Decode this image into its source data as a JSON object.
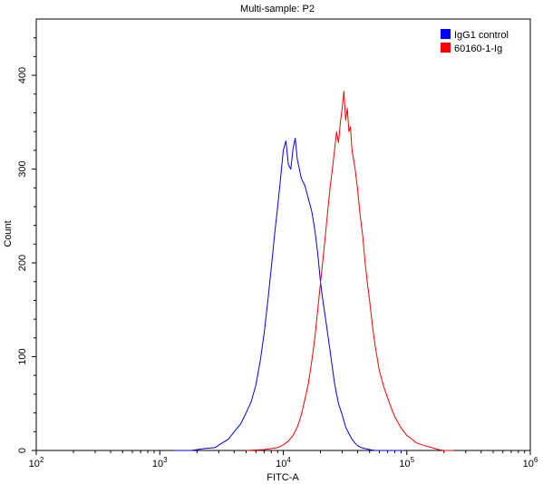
{
  "chart_data": {
    "type": "line",
    "title": "Multi-sample: P2",
    "xlabel": "FITC-A",
    "ylabel": "Count",
    "xscale": "log",
    "xlim": [
      100,
      1000000
    ],
    "ylim": [
      0,
      460
    ],
    "x_ticks": [
      100,
      1000,
      10000,
      100000,
      1000000
    ],
    "x_tick_labels": [
      {
        "base": "10",
        "exp": "2"
      },
      {
        "base": "10",
        "exp": "3"
      },
      {
        "base": "10",
        "exp": "4"
      },
      {
        "base": "10",
        "exp": "5"
      },
      {
        "base": "10",
        "exp": "6"
      }
    ],
    "y_ticks": [
      0,
      100,
      200,
      300,
      400
    ],
    "y_tick_labels": [
      "0",
      "100",
      "200",
      "300",
      "400"
    ],
    "grid": false,
    "legend_position": "top-right",
    "series": [
      {
        "name": "IgG1 control",
        "color": "#0000ff",
        "x": [
          1300,
          1800,
          2300,
          2800,
          3200,
          3600,
          4000,
          4500,
          5000,
          5500,
          6000,
          6500,
          7000,
          7500,
          8000,
          8500,
          9000,
          9500,
          10000,
          10500,
          11000,
          11500,
          12000,
          12500,
          13000,
          13500,
          14000,
          15000,
          16000,
          17000,
          18000,
          19000,
          20000,
          21000,
          22000,
          23000,
          24000,
          25000,
          26000,
          27000,
          28000,
          30000,
          32000,
          34000,
          36000,
          38000,
          40000,
          43000,
          46000,
          50000,
          55000,
          60000,
          70000,
          80000,
          95000
        ],
        "y": [
          0,
          0,
          2,
          3,
          8,
          12,
          20,
          28,
          40,
          52,
          70,
          95,
          125,
          160,
          195,
          230,
          260,
          290,
          320,
          330,
          305,
          300,
          322,
          333,
          310,
          300,
          290,
          282,
          268,
          255,
          235,
          210,
          180,
          158,
          140,
          122,
          105,
          88,
          72,
          60,
          50,
          38,
          25,
          18,
          12,
          8,
          5,
          3,
          2,
          1,
          0,
          0,
          0,
          0,
          0
        ]
      },
      {
        "name": "60160-1-Ig",
        "color": "#ff0000",
        "x": [
          5000,
          7000,
          9000,
          10000,
          11000,
          12000,
          13000,
          14000,
          15000,
          16000,
          17000,
          18000,
          19000,
          20000,
          21000,
          22000,
          23000,
          24000,
          25000,
          26000,
          27000,
          28000,
          29000,
          30000,
          31000,
          32000,
          33000,
          34000,
          35000,
          36000,
          38000,
          40000,
          42000,
          44000,
          46000,
          48000,
          50000,
          53000,
          56000,
          60000,
          65000,
          70000,
          75000,
          80000,
          90000,
          100000,
          110000,
          120000,
          140000,
          160000,
          180000,
          200000,
          240000
        ],
        "y": [
          0,
          1,
          3,
          6,
          10,
          16,
          25,
          38,
          55,
          72,
          95,
          120,
          150,
          178,
          205,
          232,
          258,
          282,
          300,
          320,
          340,
          328,
          350,
          365,
          383,
          352,
          365,
          340,
          345,
          320,
          302,
          278,
          250,
          228,
          200,
          178,
          160,
          130,
          108,
          85,
          68,
          56,
          45,
          36,
          24,
          16,
          12,
          8,
          5,
          3,
          1,
          0,
          0
        ]
      }
    ]
  }
}
